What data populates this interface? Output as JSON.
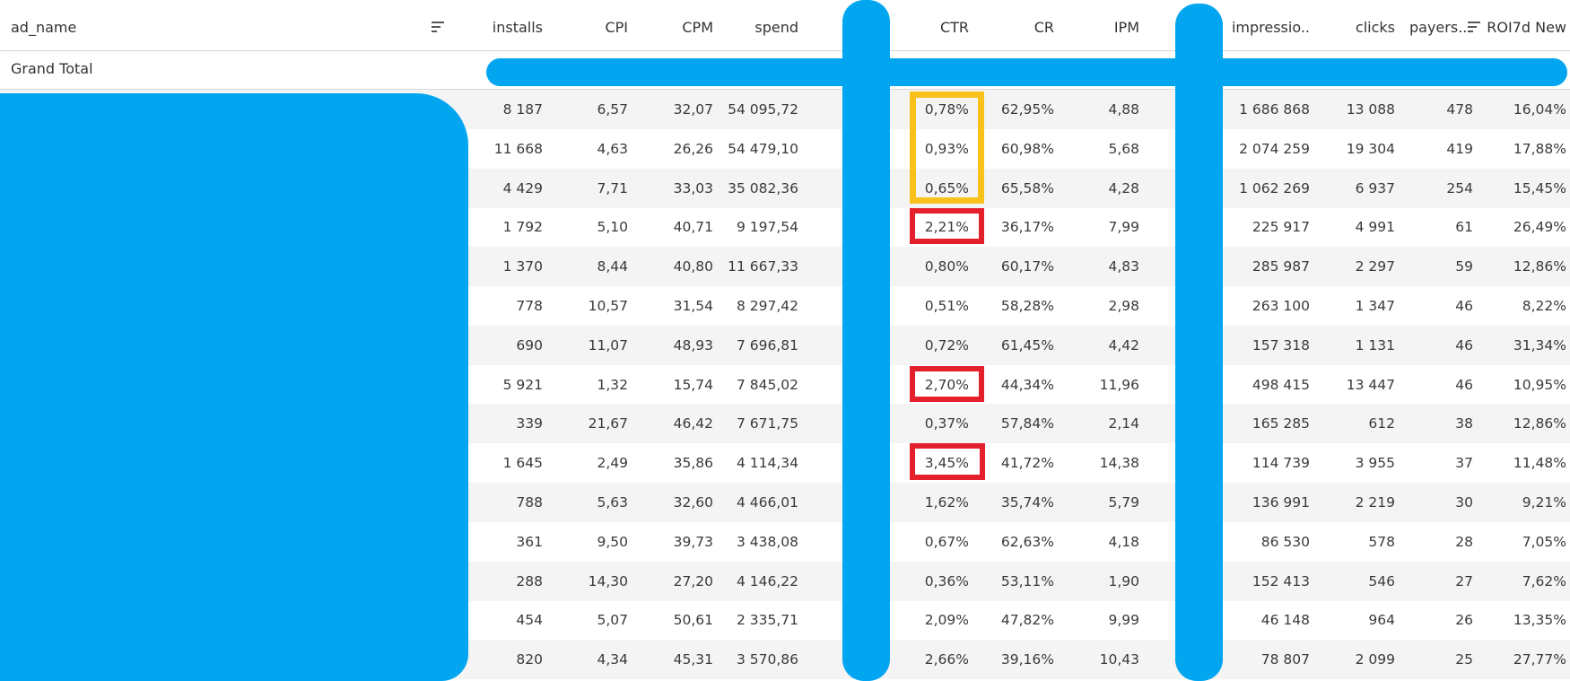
{
  "colors": {
    "redaction": "#02a6f0",
    "yellow_highlight": "#f8c21a",
    "red_highlight": "#e3202b",
    "alt_row": "#f4f4f4"
  },
  "header": {
    "columns": {
      "ad_name": "ad_name",
      "installs": "installs",
      "cpi": "CPI",
      "cpm": "CPM",
      "spend": "spend",
      "ctr": "CTR",
      "cr": "CR",
      "ipm": "IPM",
      "impressions": "impressio..",
      "clicks": "clicks",
      "payers": "payers..",
      "roi": "ROI7d New"
    },
    "sort_icons": [
      "sort-icon",
      "sort-icon"
    ]
  },
  "grand_total": {
    "label": "Grand Total"
  },
  "rows": [
    {
      "installs": "8 187",
      "cpi": "6,57",
      "cpm": "32,07",
      "spend": "54 095,72",
      "ctr": "0,78%",
      "cr": "62,95%",
      "ipm": "4,88",
      "impressions": "1 686 868",
      "clicks": "13 088",
      "payers": "478",
      "roi": "16,04%"
    },
    {
      "installs": "11 668",
      "cpi": "4,63",
      "cpm": "26,26",
      "spend": "54 479,10",
      "ctr": "0,93%",
      "cr": "60,98%",
      "ipm": "5,68",
      "impressions": "2 074 259",
      "clicks": "19 304",
      "payers": "419",
      "roi": "17,88%"
    },
    {
      "installs": "4 429",
      "cpi": "7,71",
      "cpm": "33,03",
      "spend": "35 082,36",
      "ctr": "0,65%",
      "cr": "65,58%",
      "ipm": "4,28",
      "impressions": "1 062 269",
      "clicks": "6 937",
      "payers": "254",
      "roi": "15,45%"
    },
    {
      "installs": "1 792",
      "cpi": "5,10",
      "cpm": "40,71",
      "spend": "9 197,54",
      "ctr": "2,21%",
      "cr": "36,17%",
      "ipm": "7,99",
      "impressions": "225 917",
      "clicks": "4 991",
      "payers": "61",
      "roi": "26,49%"
    },
    {
      "installs": "1 370",
      "cpi": "8,44",
      "cpm": "40,80",
      "spend": "11 667,33",
      "ctr": "0,80%",
      "cr": "60,17%",
      "ipm": "4,83",
      "impressions": "285 987",
      "clicks": "2 297",
      "payers": "59",
      "roi": "12,86%"
    },
    {
      "installs": "778",
      "cpi": "10,57",
      "cpm": "31,54",
      "spend": "8 297,42",
      "ctr": "0,51%",
      "cr": "58,28%",
      "ipm": "2,98",
      "impressions": "263 100",
      "clicks": "1 347",
      "payers": "46",
      "roi": "8,22%"
    },
    {
      "installs": "690",
      "cpi": "11,07",
      "cpm": "48,93",
      "spend": "7 696,81",
      "ctr": "0,72%",
      "cr": "61,45%",
      "ipm": "4,42",
      "impressions": "157 318",
      "clicks": "1 131",
      "payers": "46",
      "roi": "31,34%"
    },
    {
      "installs": "5 921",
      "cpi": "1,32",
      "cpm": "15,74",
      "spend": "7 845,02",
      "ctr": "2,70%",
      "cr": "44,34%",
      "ipm": "11,96",
      "impressions": "498 415",
      "clicks": "13 447",
      "payers": "46",
      "roi": "10,95%"
    },
    {
      "installs": "339",
      "cpi": "21,67",
      "cpm": "46,42",
      "spend": "7 671,75",
      "ctr": "0,37%",
      "cr": "57,84%",
      "ipm": "2,14",
      "impressions": "165 285",
      "clicks": "612",
      "payers": "38",
      "roi": "12,86%"
    },
    {
      "installs": "1 645",
      "cpi": "2,49",
      "cpm": "35,86",
      "spend": "4 114,34",
      "ctr": "3,45%",
      "cr": "41,72%",
      "ipm": "14,38",
      "impressions": "114 739",
      "clicks": "3 955",
      "payers": "37",
      "roi": "11,48%"
    },
    {
      "installs": "788",
      "cpi": "5,63",
      "cpm": "32,60",
      "spend": "4 466,01",
      "ctr": "1,62%",
      "cr": "35,74%",
      "ipm": "5,79",
      "impressions": "136 991",
      "clicks": "2 219",
      "payers": "30",
      "roi": "9,21%"
    },
    {
      "installs": "361",
      "cpi": "9,50",
      "cpm": "39,73",
      "spend": "3 438,08",
      "ctr": "0,67%",
      "cr": "62,63%",
      "ipm": "4,18",
      "impressions": "86 530",
      "clicks": "578",
      "payers": "28",
      "roi": "7,05%"
    },
    {
      "installs": "288",
      "cpi": "14,30",
      "cpm": "27,20",
      "spend": "4 146,22",
      "ctr": "0,36%",
      "cr": "53,11%",
      "ipm": "1,90",
      "impressions": "152 413",
      "clicks": "546",
      "payers": "27",
      "roi": "7,62%"
    },
    {
      "installs": "454",
      "cpi": "5,07",
      "cpm": "50,61",
      "spend": "2 335,71",
      "ctr": "2,09%",
      "cr": "47,82%",
      "ipm": "9,99",
      "impressions": "46 148",
      "clicks": "964",
      "payers": "26",
      "roi": "13,35%"
    },
    {
      "installs": "820",
      "cpi": "4,34",
      "cpm": "45,31",
      "spend": "3 570,86",
      "ctr": "2,66%",
      "cr": "39,16%",
      "ipm": "10,43",
      "impressions": "78 807",
      "clicks": "2 099",
      "payers": "25",
      "roi": "27,77%"
    }
  ]
}
